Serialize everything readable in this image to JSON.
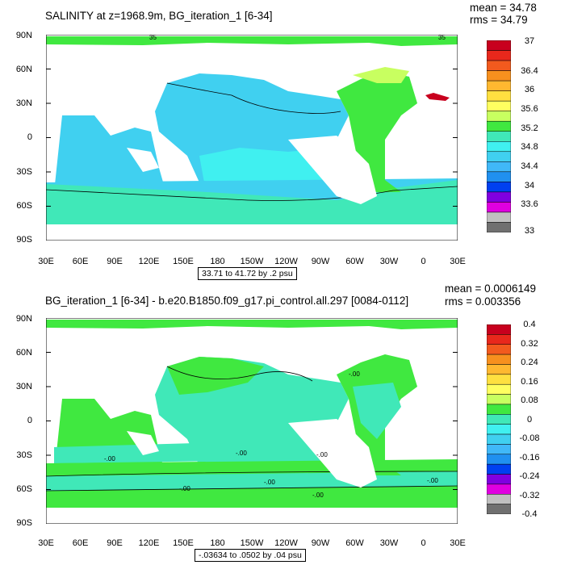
{
  "maps": [
    {
      "title": "SALINITY at z=1968.9m, BG_iteration_1 [6-34]",
      "mean": "mean = 34.78",
      "rms": "rms = 34.79",
      "range": "33.71 to 41.72 by .2 psu",
      "y_labels": [
        "90N",
        "60N",
        "30N",
        "0",
        "30S",
        "60S",
        "90S"
      ],
      "x_labels": [
        "30E",
        "60E",
        "90E",
        "120E",
        "150E",
        "180",
        "150W",
        "120W",
        "90W",
        "60W",
        "30W",
        "0",
        "30E"
      ],
      "contour_labels": [
        "35",
        "35"
      ],
      "legend_labels": [
        "37",
        "36.4",
        "36",
        "35.6",
        "35.2",
        "34.8",
        "34.4",
        "34",
        "33.6",
        "33"
      ],
      "legend_colors": [
        "#c8001e",
        "#e8281c",
        "#f25a1e",
        "#f7901e",
        "#ffb830",
        "#ffe040",
        "#ffff60",
        "#c8ff60",
        "#40e840",
        "#40e8b8",
        "#40f0f0",
        "#40d0f0",
        "#40b8f8",
        "#2090f0",
        "#0040f0",
        "#8000e0",
        "#e000e0",
        "#c0c0c0",
        "#707070"
      ]
    },
    {
      "title": "BG_iteration_1 [6-34] - b.e20.B1850.f09_g17.pi_control.all.297 [0084-0112]",
      "mean": "mean = 0.0006149",
      "rms": "rms = 0.003356",
      "range": "-.03634 to .0502 by .04 psu",
      "y_labels": [
        "90N",
        "60N",
        "30N",
        "0",
        "30S",
        "60S",
        "90S"
      ],
      "x_labels": [
        "30E",
        "60E",
        "90E",
        "120E",
        "150E",
        "180",
        "150W",
        "120W",
        "90W",
        "60W",
        "30W",
        "0",
        "30E"
      ],
      "contour_labels": [
        "-.00",
        "-.00",
        "-.00",
        "-.00",
        "-.00",
        "-.00",
        "-.00",
        "-.00"
      ],
      "legend_labels": [
        "0.4",
        "0.32",
        "0.24",
        "0.16",
        "0.08",
        "0",
        "-0.08",
        "-0.16",
        "-0.24",
        "-0.32",
        "-0.4"
      ],
      "legend_colors": [
        "#c8001e",
        "#e8281c",
        "#f25a1e",
        "#f7901e",
        "#ffb830",
        "#ffe040",
        "#ffff60",
        "#c8ff60",
        "#40e840",
        "#40e8b8",
        "#40f0f0",
        "#40d0f0",
        "#40b8f8",
        "#2090f0",
        "#0040f0",
        "#8000e0",
        "#e000e0",
        "#c0c0c0",
        "#707070"
      ]
    }
  ]
}
